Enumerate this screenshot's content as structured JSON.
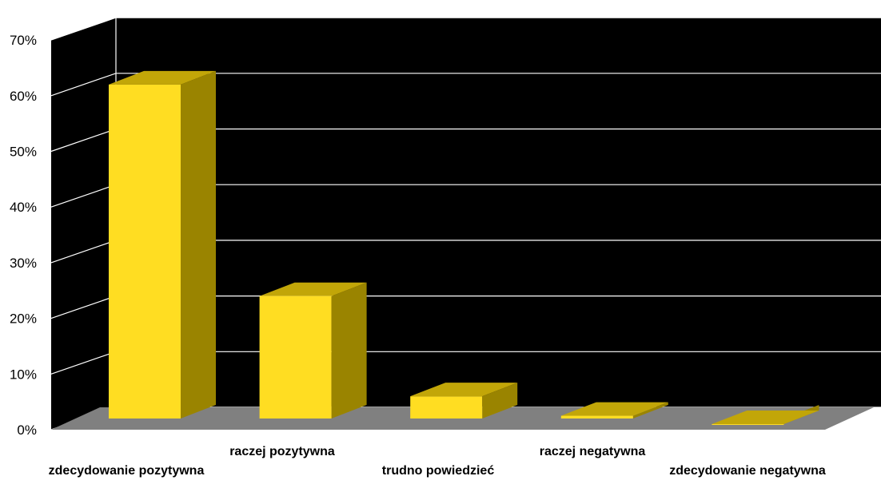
{
  "colors": {
    "plot_background": "#000000",
    "grid": "#ffffff",
    "floor": "#808080",
    "bar_front": "#ffdd22",
    "bar_side": "#9a8400",
    "bar_top": "#c2a608"
  },
  "chart_data": {
    "type": "bar",
    "three_d": true,
    "categories": [
      "zdecydowanie pozytywna",
      "raczej pozytywna",
      "trudno powiedzieć",
      "raczej negatywna",
      "zdecydowanie negatywna"
    ],
    "values": [
      62,
      24,
      6,
      2.5,
      1
    ],
    "ylim": [
      0,
      70
    ],
    "yticks": [
      "0%",
      "10%",
      "20%",
      "30%",
      "40%",
      "50%",
      "60%",
      "70%"
    ],
    "grid": true,
    "legend": false
  }
}
